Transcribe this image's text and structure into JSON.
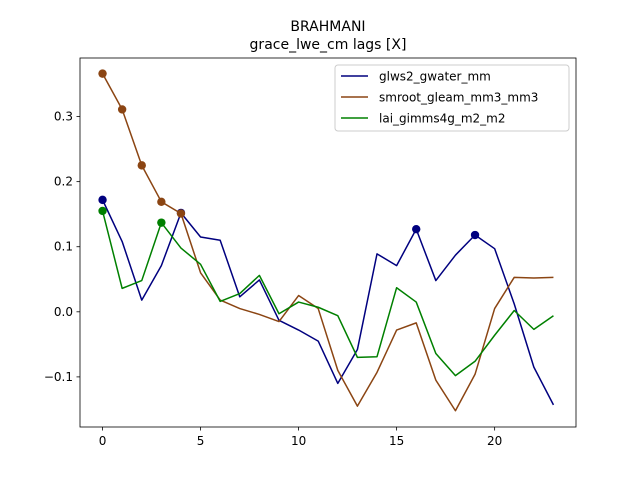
{
  "chart_data": {
    "type": "line",
    "title": "BRAHMANI",
    "subtitle": "grace_lwe_cm lags [X]",
    "xlabel": "",
    "ylabel": "",
    "xlim": [
      -1.15,
      24.15
    ],
    "ylim": [
      -0.177,
      0.39
    ],
    "xticks": [
      0,
      5,
      10,
      15,
      20
    ],
    "yticks": [
      -0.1,
      0.0,
      0.1,
      0.2,
      0.3
    ],
    "ytick_labels": [
      "−0.1",
      "0.0",
      "0.1",
      "0.2",
      "0.3"
    ],
    "grid": false,
    "legend_position": "top-right",
    "x": [
      0,
      1,
      2,
      3,
      4,
      5,
      6,
      7,
      8,
      9,
      10,
      11,
      12,
      13,
      14,
      15,
      16,
      17,
      18,
      19,
      20,
      21,
      22,
      23
    ],
    "series": [
      {
        "name": "glws2_gwater_mm",
        "color": "#00007f",
        "values": [
          0.172,
          0.108,
          0.018,
          0.071,
          0.152,
          0.115,
          0.11,
          0.023,
          0.049,
          -0.013,
          -0.028,
          -0.045,
          -0.11,
          -0.058,
          0.089,
          0.071,
          0.127,
          0.048,
          0.087,
          0.118,
          0.097,
          0.012,
          -0.085,
          -0.143
        ],
        "markers": [
          0,
          4,
          16,
          19
        ]
      },
      {
        "name": "smroot_gleam_mm3_mm3",
        "color": "#8b4513",
        "values": [
          0.366,
          0.311,
          0.225,
          0.169,
          0.151,
          0.06,
          0.018,
          0.005,
          -0.004,
          -0.015,
          0.025,
          0.005,
          -0.09,
          -0.145,
          -0.093,
          -0.028,
          -0.017,
          -0.105,
          -0.152,
          -0.096,
          0.005,
          0.053,
          0.052,
          0.053
        ],
        "markers": [
          0,
          1,
          2,
          3,
          4
        ]
      },
      {
        "name": "lai_gimms4g_m2_m2",
        "color": "#008000",
        "values": [
          0.155,
          0.036,
          0.048,
          0.137,
          0.098,
          0.073,
          0.016,
          0.028,
          0.056,
          -0.003,
          0.015,
          0.007,
          -0.006,
          -0.07,
          -0.069,
          0.037,
          0.015,
          -0.064,
          -0.098,
          -0.076,
          -0.036,
          0.002,
          -0.027,
          -0.006
        ],
        "markers": [
          0,
          3
        ]
      }
    ]
  }
}
